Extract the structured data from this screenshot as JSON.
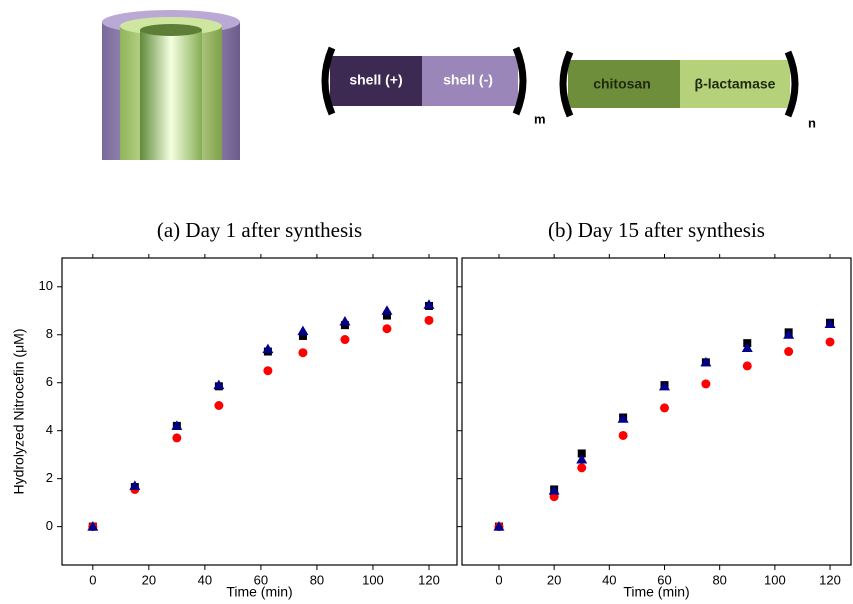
{
  "diagram": {
    "shell_pos": "shell (+)",
    "shell_neg": "shell (-)",
    "m": "m",
    "chitosan": "chitosan",
    "enzyme": "β-lactamase",
    "n": "n"
  },
  "chart_data": [
    {
      "type": "scatter",
      "title": "(a)   Day 1 after synthesis",
      "xlabel": "Time (min)",
      "ylabel": "Hydrolyzed Nitrocefin (μM)",
      "x": [
        0,
        15,
        30,
        45,
        62.5,
        75,
        90,
        105,
        120
      ],
      "series": [
        {
          "color": "#000000",
          "marker": "square",
          "values": [
            0,
            1.65,
            4.2,
            5.85,
            7.3,
            7.95,
            8.4,
            8.8,
            9.2
          ]
        },
        {
          "color": "#ff0000",
          "marker": "circle",
          "values": [
            0,
            1.55,
            3.7,
            5.05,
            6.5,
            7.25,
            7.8,
            8.25,
            8.6
          ]
        },
        {
          "color": "#00008b",
          "marker": "triangle",
          "values": [
            0,
            1.7,
            4.2,
            5.9,
            7.4,
            8.15,
            8.55,
            9.0,
            9.25
          ]
        }
      ],
      "xlim": [
        -11,
        130
      ],
      "ylim": [
        -1.6,
        11.2
      ],
      "xticks": [
        0,
        20,
        40,
        60,
        80,
        100,
        120
      ],
      "yticks": [
        0,
        2,
        4,
        6,
        8,
        10
      ]
    },
    {
      "type": "scatter",
      "title": "(b)   Day 15 after synthesis",
      "xlabel": "Time (min)",
      "x": [
        0,
        20,
        30,
        45,
        60,
        75,
        90,
        105,
        120
      ],
      "series": [
        {
          "color": "#000000",
          "marker": "square",
          "values": [
            0,
            1.55,
            3.05,
            4.55,
            5.9,
            6.85,
            7.65,
            8.1,
            8.5
          ]
        },
        {
          "color": "#ff0000",
          "marker": "circle",
          "values": [
            0,
            1.25,
            2.45,
            3.8,
            4.95,
            5.95,
            6.7,
            7.3,
            7.7
          ]
        },
        {
          "color": "#00008b",
          "marker": "triangle",
          "values": [
            0,
            1.5,
            2.8,
            4.5,
            5.85,
            6.85,
            7.45,
            8.0,
            8.45
          ]
        }
      ],
      "xlim": [
        -13.4,
        127.6
      ],
      "ylim": [
        -1.6,
        11.2
      ],
      "xticks": [
        0,
        20,
        40,
        60,
        80,
        100,
        120
      ],
      "yticks": [
        0,
        2,
        4,
        6,
        8,
        10
      ]
    }
  ]
}
